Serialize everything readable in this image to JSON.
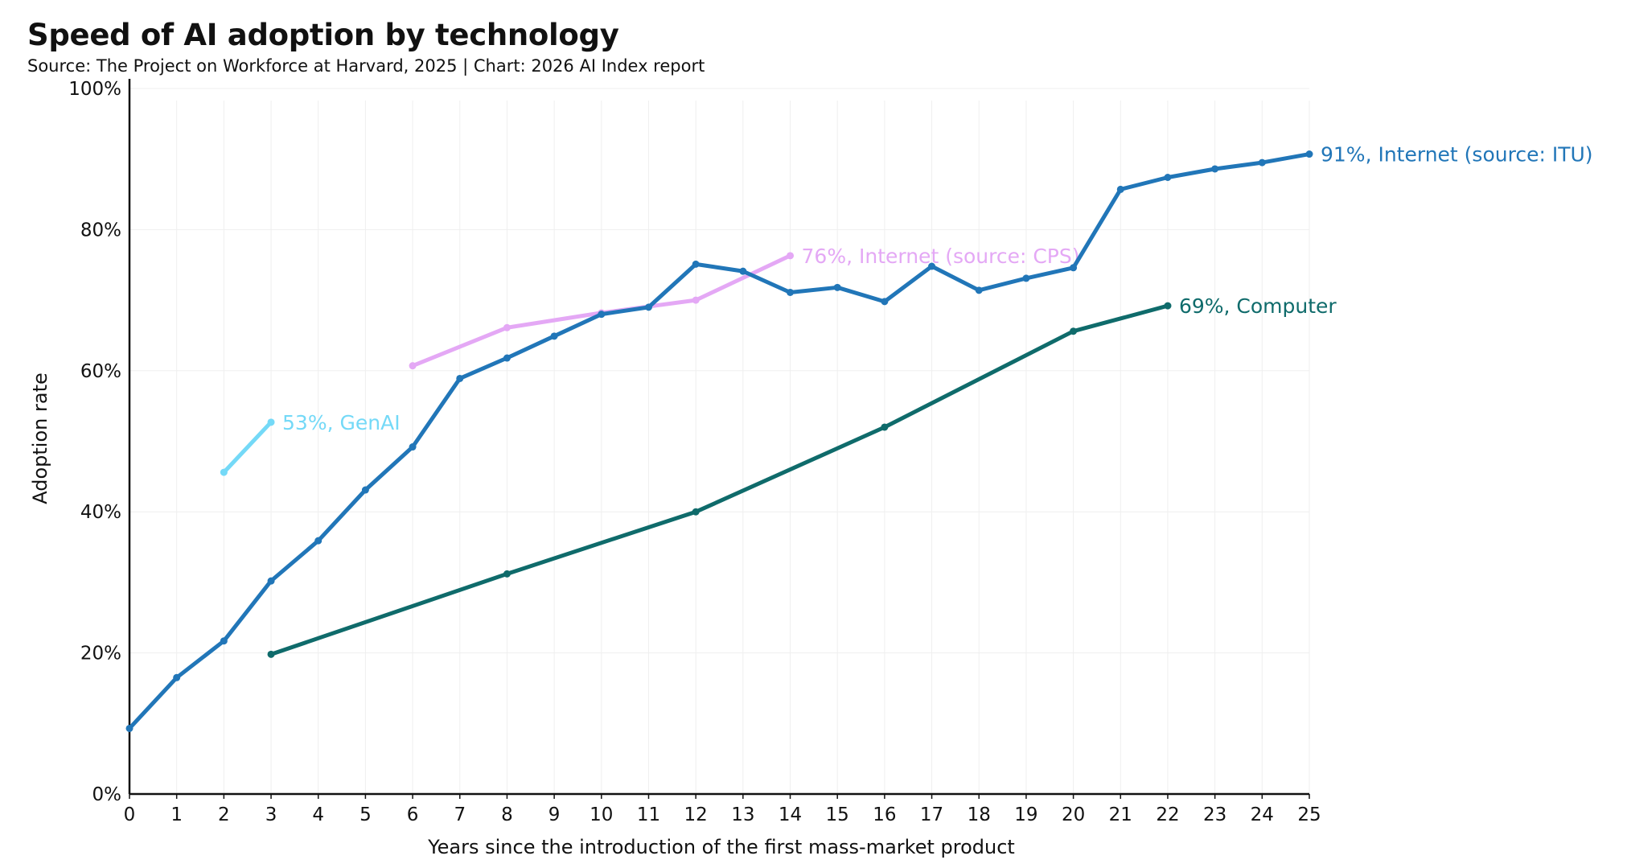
{
  "header": {
    "title": "Speed of AI adoption by technology",
    "subtitle": "Source: The Project on Workforce at Harvard, 2025 | Chart: 2026 AI Index report"
  },
  "chart_data": {
    "type": "line",
    "title": "Speed of AI adoption by technology",
    "subtitle": "Source: The Project on Workforce at Harvard, 2025 | Chart: 2026 AI Index report",
    "xlabel": "Years since the introduction of the first mass-market product",
    "ylabel": "Adoption rate",
    "xlim": [
      0,
      25
    ],
    "ylim": [
      0,
      100
    ],
    "x_ticks": [
      "0",
      "1",
      "2",
      "3",
      "4",
      "5",
      "6",
      "7",
      "8",
      "9",
      "10",
      "11",
      "12",
      "13",
      "14",
      "15",
      "16",
      "17",
      "18",
      "19",
      "20",
      "21",
      "22",
      "23",
      "24",
      "25"
    ],
    "y_ticks": [
      "0%",
      "20%",
      "40%",
      "60%",
      "80%",
      "100%"
    ],
    "y_tick_values": [
      0,
      20,
      40,
      60,
      80,
      100
    ],
    "grid": true,
    "series": [
      {
        "key": "computer",
        "color": "#0f6b6b",
        "end_label": "69%, Computer",
        "points": [
          [
            3,
            19.8
          ],
          [
            8,
            31.2
          ],
          [
            12,
            40.0
          ],
          [
            16,
            52.0
          ],
          [
            20,
            65.6
          ],
          [
            22,
            69.2
          ]
        ]
      },
      {
        "key": "internet-cps",
        "color": "#e4a8f5",
        "end_label": "76%, Internet (source: CPS)",
        "points": [
          [
            6,
            60.7
          ],
          [
            8,
            66.1
          ],
          [
            10,
            68.2
          ],
          [
            12,
            70.0
          ],
          [
            14,
            76.3
          ]
        ]
      },
      {
        "key": "internet-itu",
        "color": "#2176b8",
        "end_label": "91%, Internet (source: ITU)",
        "points": [
          [
            0,
            9.3
          ],
          [
            1,
            16.5
          ],
          [
            2,
            21.7
          ],
          [
            3,
            30.2
          ],
          [
            4,
            35.9
          ],
          [
            5,
            43.1
          ],
          [
            6,
            49.2
          ],
          [
            7,
            58.9
          ],
          [
            8,
            61.8
          ],
          [
            9,
            64.9
          ],
          [
            10,
            68.0
          ],
          [
            11,
            69.0
          ],
          [
            12,
            75.1
          ],
          [
            13,
            74.1
          ],
          [
            14,
            71.1
          ],
          [
            15,
            71.8
          ],
          [
            16,
            69.8
          ],
          [
            17,
            74.8
          ],
          [
            18,
            71.4
          ],
          [
            19,
            73.1
          ],
          [
            20,
            74.6
          ],
          [
            21,
            85.7
          ],
          [
            22,
            87.4
          ],
          [
            23,
            88.6
          ],
          [
            24,
            89.5
          ],
          [
            25,
            90.7
          ]
        ]
      },
      {
        "key": "genai",
        "color": "#74d9f7",
        "end_label": "53%, GenAI",
        "points": [
          [
            2,
            45.6
          ],
          [
            3,
            52.7
          ]
        ]
      }
    ]
  }
}
